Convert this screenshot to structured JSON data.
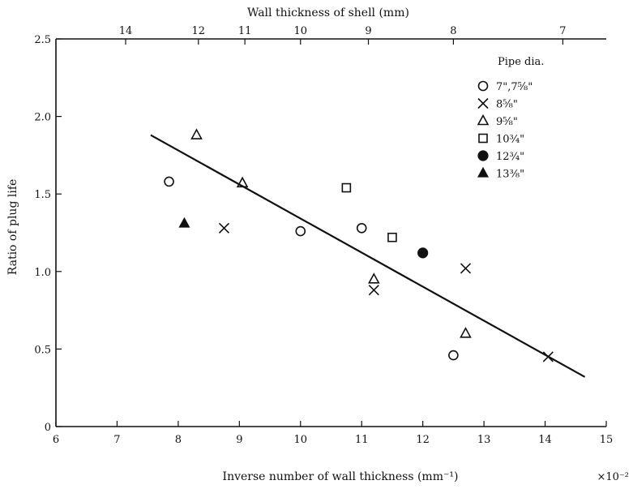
{
  "chart_data": {
    "type": "scatter",
    "title": "",
    "xlabel": "Inverse number of wall thickness (mm⁻¹)",
    "x_multiplier": "×10⁻²",
    "top_xlabel": "Wall thickness of shell (mm)",
    "ylabel": "Ratio of plug life",
    "xlim": [
      6,
      15
    ],
    "ylim": [
      0,
      2.5
    ],
    "xticks": [
      "6",
      "7",
      "8",
      "9",
      "10",
      "11",
      "12",
      "13",
      "14",
      "15"
    ],
    "yticks": [
      "0",
      "0.5",
      "1.0",
      "1.5",
      "2.0",
      "2.5"
    ],
    "top_ticks": [
      {
        "label": "14",
        "x": 7.14
      },
      {
        "label": "12",
        "x": 8.33
      },
      {
        "label": "11",
        "x": 9.09
      },
      {
        "label": "10",
        "x": 10.0
      },
      {
        "label": "9",
        "x": 11.11
      },
      {
        "label": "8",
        "x": 12.5
      },
      {
        "label": "7",
        "x": 14.29
      }
    ],
    "legend_title": "Pipe dia.",
    "legend_position": "top-right",
    "series": [
      {
        "name": "7\",7⅝\"",
        "marker": "circle",
        "points": [
          [
            7.85,
            1.58
          ],
          [
            10.0,
            1.26
          ],
          [
            11.0,
            1.28
          ],
          [
            12.5,
            0.46
          ]
        ]
      },
      {
        "name": "8⅝\"",
        "marker": "x",
        "points": [
          [
            8.75,
            1.28
          ],
          [
            11.2,
            0.88
          ],
          [
            12.7,
            1.02
          ],
          [
            14.05,
            0.45
          ]
        ]
      },
      {
        "name": "9⅝\"",
        "marker": "triangle",
        "points": [
          [
            8.3,
            1.88
          ],
          [
            9.05,
            1.57
          ],
          [
            11.2,
            0.95
          ],
          [
            12.7,
            0.6
          ]
        ]
      },
      {
        "name": "10¾\"",
        "marker": "square",
        "points": [
          [
            10.75,
            1.54
          ],
          [
            11.5,
            1.22
          ]
        ]
      },
      {
        "name": "12¾\"",
        "marker": "circle-filled",
        "points": [
          [
            12.0,
            1.12
          ]
        ]
      },
      {
        "name": "13⅜\"",
        "marker": "triangle-filled",
        "points": [
          [
            8.1,
            1.31
          ]
        ]
      }
    ],
    "trend_line": {
      "x": [
        7.55,
        14.65
      ],
      "y": [
        1.88,
        0.32
      ]
    }
  }
}
